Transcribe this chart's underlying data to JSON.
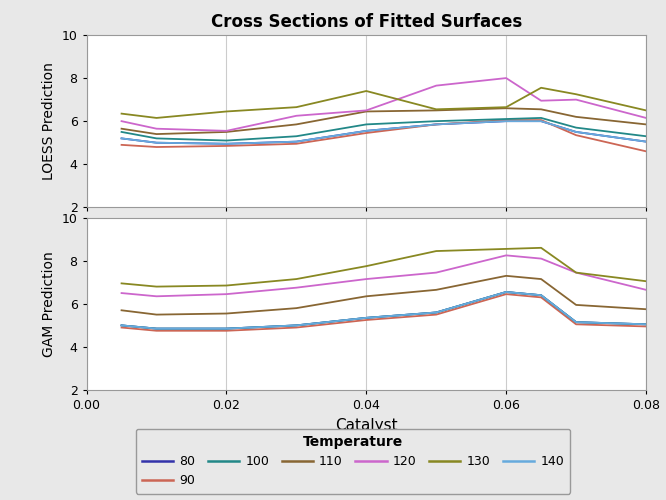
{
  "title": "Cross Sections of Fitted Surfaces",
  "xlabel": "Catalyst",
  "ylabel_top": "LOESS Prediction",
  "ylabel_bottom": "GAM Prediction",
  "legend_title": "Temperature",
  "x": [
    0.005,
    0.01,
    0.02,
    0.03,
    0.04,
    0.05,
    0.06,
    0.065,
    0.07,
    0.08
  ],
  "temperatures": [
    80,
    90,
    100,
    110,
    120,
    130,
    140
  ],
  "colors": {
    "80": "#3333aa",
    "90": "#cc6655",
    "100": "#228888",
    "110": "#886633",
    "120": "#cc66cc",
    "130": "#888822",
    "140": "#66aadd"
  },
  "loess": {
    "80": [
      5.2,
      5.0,
      4.95,
      5.05,
      5.55,
      5.85,
      6.0,
      6.0,
      5.5,
      5.05
    ],
    "90": [
      4.9,
      4.8,
      4.85,
      4.95,
      5.45,
      5.85,
      6.05,
      6.05,
      5.35,
      4.6
    ],
    "100": [
      5.5,
      5.2,
      5.1,
      5.3,
      5.85,
      6.0,
      6.1,
      6.15,
      5.7,
      5.3
    ],
    "110": [
      5.65,
      5.4,
      5.5,
      5.85,
      6.45,
      6.5,
      6.6,
      6.55,
      6.2,
      5.85
    ],
    "120": [
      6.0,
      5.65,
      5.55,
      6.25,
      6.5,
      7.65,
      8.0,
      6.95,
      7.0,
      6.15
    ],
    "130": [
      6.35,
      6.15,
      6.45,
      6.65,
      7.4,
      6.55,
      6.65,
      7.55,
      7.25,
      6.5
    ],
    "140": [
      5.2,
      5.0,
      4.95,
      5.05,
      5.55,
      5.85,
      6.0,
      6.0,
      5.5,
      5.05
    ]
  },
  "gam": {
    "80": [
      5.0,
      4.85,
      4.85,
      5.0,
      5.35,
      5.6,
      6.55,
      6.4,
      5.15,
      5.05
    ],
    "90": [
      4.9,
      4.75,
      4.75,
      4.9,
      5.25,
      5.5,
      6.45,
      6.3,
      5.05,
      4.95
    ],
    "100": [
      5.0,
      4.85,
      4.85,
      5.0,
      5.35,
      5.6,
      6.55,
      6.4,
      5.15,
      5.05
    ],
    "110": [
      5.7,
      5.5,
      5.55,
      5.8,
      6.35,
      6.65,
      7.3,
      7.15,
      5.95,
      5.75
    ],
    "120": [
      6.5,
      6.35,
      6.45,
      6.75,
      7.15,
      7.45,
      8.25,
      8.1,
      7.45,
      6.65
    ],
    "130": [
      6.95,
      6.8,
      6.85,
      7.15,
      7.75,
      8.45,
      8.55,
      8.6,
      7.45,
      7.05
    ],
    "140": [
      5.0,
      4.85,
      4.85,
      5.0,
      5.35,
      5.6,
      6.55,
      6.4,
      5.15,
      5.05
    ]
  },
  "ylim": [
    2,
    10
  ],
  "yticks": [
    2,
    4,
    6,
    8,
    10
  ],
  "xlim": [
    0.0,
    0.08
  ],
  "xticks": [
    0.0,
    0.02,
    0.04,
    0.06,
    0.08
  ],
  "background_color": "#e8e8e8",
  "plot_bg": "#ffffff",
  "grid_color": "#cccccc",
  "border_color": "#999999"
}
